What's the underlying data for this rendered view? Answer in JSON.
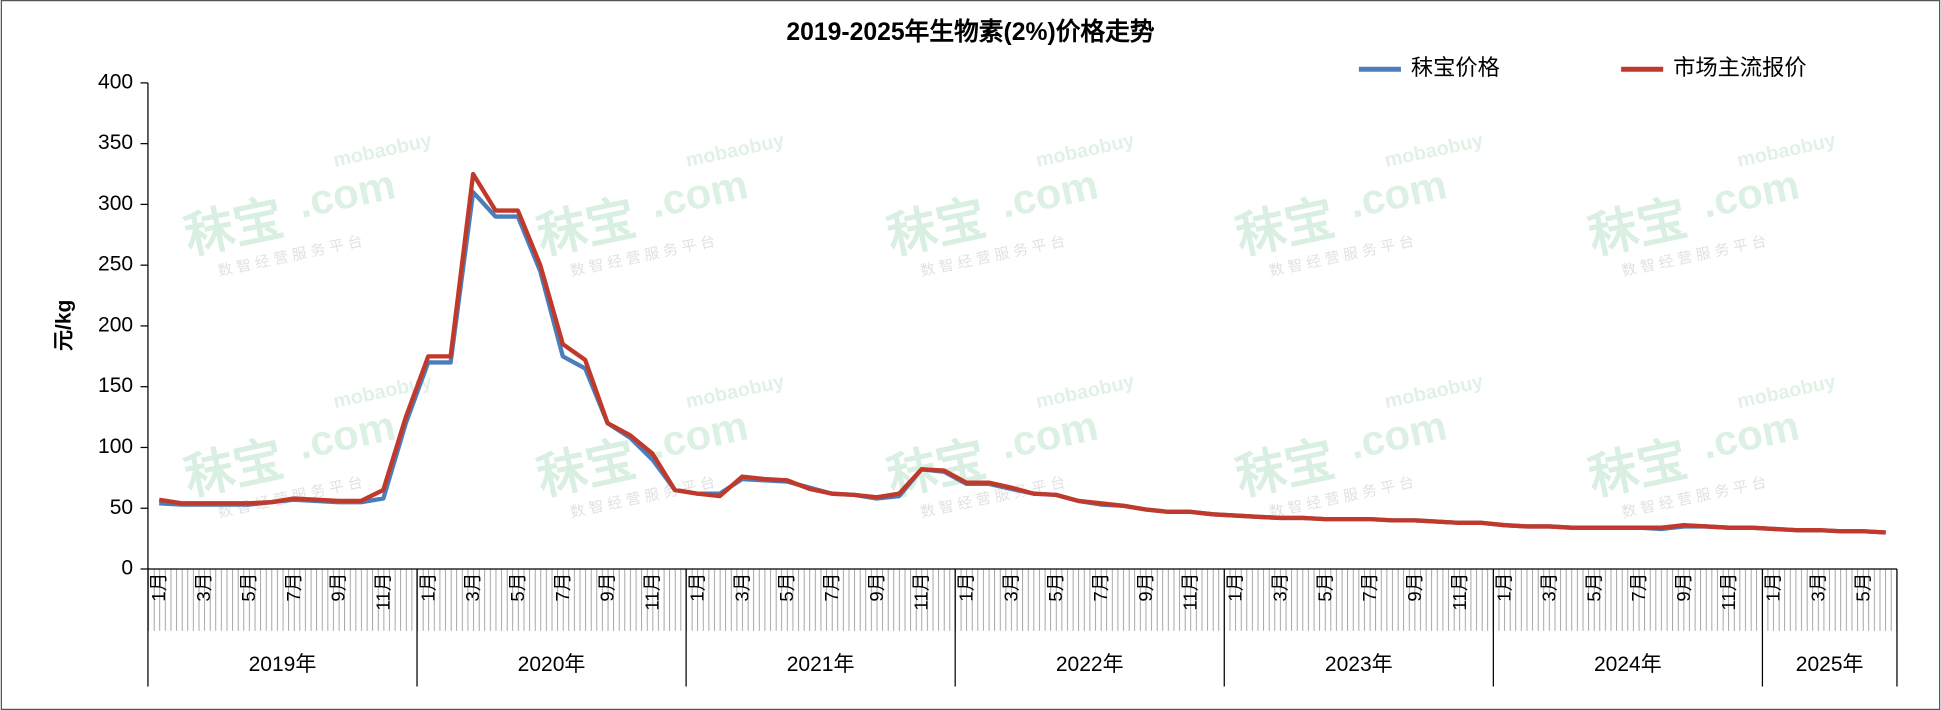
{
  "chart_data": {
    "type": "line",
    "title": "2019-2025年生物素(2%)价格走势",
    "y_label": "元/kg",
    "ylim": [
      0,
      400
    ],
    "yticks": [
      0,
      50,
      100,
      150,
      200,
      250,
      300,
      350,
      400
    ],
    "grid": false,
    "legend": "top-right",
    "categories": [
      "1月",
      null,
      "3月",
      null,
      "5月",
      null,
      "7月",
      null,
      "9月",
      null,
      "11月",
      null,
      "1月",
      null,
      "3月",
      null,
      "5月",
      null,
      "7月",
      null,
      "9月",
      null,
      "11月",
      null,
      "1月",
      null,
      "3月",
      null,
      "5月",
      null,
      "7月",
      null,
      "9月",
      null,
      "11月",
      null,
      "1月",
      null,
      "3月",
      null,
      "5月",
      null,
      "7月",
      null,
      "9月",
      null,
      "11月",
      null,
      "1月",
      null,
      "3月",
      null,
      "5月",
      null,
      "7月",
      null,
      "9月",
      null,
      "11月",
      null,
      "1月",
      null,
      "3月",
      null,
      "5月",
      null,
      "7月",
      null,
      "9月",
      null,
      "11月",
      null,
      "1月",
      null,
      "3月",
      null,
      "5月",
      null
    ],
    "years": [
      "2019年",
      "2020年",
      "2021年",
      "2022年",
      "2023年",
      "2024年",
      "2025年"
    ],
    "series": [
      {
        "name": "秣宝价格",
        "color": "#4a7ebb",
        "values": [
          54,
          53,
          53,
          53,
          53,
          55,
          57,
          56,
          55,
          55,
          58,
          120,
          170,
          170,
          310,
          290,
          290,
          245,
          175,
          165,
          120,
          108,
          90,
          65,
          62,
          62,
          74,
          73,
          72,
          67,
          62,
          61,
          58,
          60,
          82,
          80,
          70,
          70,
          66,
          62,
          61,
          56,
          53,
          52,
          49,
          47,
          47,
          45,
          44,
          43,
          42,
          42,
          41,
          41,
          41,
          40,
          40,
          39,
          38,
          38,
          36,
          35,
          35,
          34,
          34,
          34,
          34,
          33,
          35,
          35,
          34,
          34,
          33,
          32,
          32,
          31,
          31,
          30
        ]
      },
      {
        "name": "市场主流报价",
        "color": "#c0392b",
        "values": [
          57,
          54,
          54,
          54,
          54,
          55,
          58,
          57,
          56,
          56,
          65,
          125,
          175,
          175,
          325,
          295,
          295,
          250,
          185,
          172,
          120,
          110,
          95,
          65,
          62,
          60,
          76,
          74,
          73,
          66,
          62,
          61,
          59,
          62,
          82,
          81,
          71,
          71,
          67,
          62,
          61,
          56,
          54,
          52,
          49,
          47,
          47,
          45,
          44,
          43,
          42,
          42,
          41,
          41,
          41,
          40,
          40,
          39,
          38,
          38,
          36,
          35,
          35,
          34,
          34,
          34,
          34,
          34,
          36,
          35,
          34,
          34,
          33,
          32,
          32,
          31,
          31,
          30
        ]
      }
    ],
    "watermark": {
      "brand": "秣宝",
      "domain": ".com",
      "site": "mobaobuy",
      "slogan": "数 智 经 营 服 务 平 台"
    }
  }
}
